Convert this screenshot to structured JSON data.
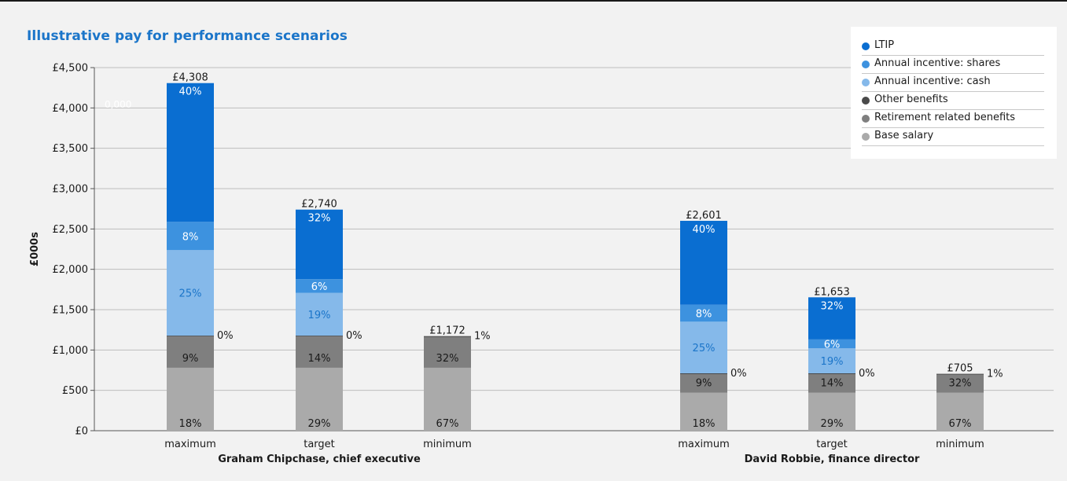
{
  "chart_data": {
    "type": "bar",
    "stacked": true,
    "title": "Illustrative pay for performance scenarios",
    "ylabel": "£000s",
    "ylim": [
      0,
      4500
    ],
    "yticks": [
      0,
      500,
      1000,
      1500,
      2000,
      2500,
      3000,
      3500,
      4000,
      4500
    ],
    "ytick_labels": [
      "£0",
      "£500",
      "£1,000",
      "£1,500",
      "£2,000",
      "£2,500",
      "£3,000",
      "£3,500",
      "£4,000",
      "£4,500"
    ],
    "grid": true,
    "legend_position": "top-right",
    "watermark_text": "0,000",
    "series": [
      {
        "name": "Base salary",
        "color": "#aaaaaa",
        "label_color": "#1a1a1a"
      },
      {
        "name": "Retirement related benefits",
        "color": "#7f7f7f",
        "label_color": "#1a1a1a"
      },
      {
        "name": "Other benefits",
        "color": "#4a4a4a",
        "label_color": "#1a1a1a"
      },
      {
        "name": "Annual incentive: cash",
        "color": "#85b9ea",
        "label_color": "#1b75c9"
      },
      {
        "name": "Annual incentive: shares",
        "color": "#3d92df",
        "label_color": "#ffffff"
      },
      {
        "name": "LTIP",
        "color": "#0a6ed1",
        "label_color": "#ffffff"
      }
    ],
    "legend_order": [
      "LTIP",
      "Annual incentive: shares",
      "Annual incentive: cash",
      "Other benefits",
      "Retirement related benefits",
      "Base salary"
    ],
    "groups": [
      {
        "name": "Graham Chipchase, chief executive",
        "bars": [
          {
            "category": "maximum",
            "total": 4308,
            "total_label": "£4,308",
            "values": [
              780,
              388,
              10,
              1060,
              350,
              1720
            ],
            "labels": [
              "18%",
              "9%",
              "0%",
              "25%",
              "8%",
              "40%"
            ]
          },
          {
            "category": "target",
            "total": 2740,
            "total_label": "£2,740",
            "values": [
              780,
              388,
              10,
              530,
              170,
              862
            ],
            "labels": [
              "29%",
              "14%",
              "0%",
              "19%",
              "6%",
              "32%"
            ]
          },
          {
            "category": "minimum",
            "total": 1172,
            "total_label": "£1,172",
            "values": [
              780,
              380,
              12,
              0,
              0,
              0
            ],
            "labels": [
              "67%",
              "32%",
              "1%",
              "",
              "",
              ""
            ]
          }
        ]
      },
      {
        "name": "David Robbie, finance director",
        "bars": [
          {
            "category": "maximum",
            "total": 2601,
            "total_label": "£2,601",
            "values": [
              470,
              233,
              8,
              640,
              210,
              1040
            ],
            "labels": [
              "18%",
              "9%",
              "0%",
              "25%",
              "8%",
              "40%"
            ]
          },
          {
            "category": "target",
            "total": 1653,
            "total_label": "£1,653",
            "values": [
              470,
              233,
              8,
              310,
              110,
              522
            ],
            "labels": [
              "29%",
              "14%",
              "0%",
              "19%",
              "6%",
              "32%"
            ]
          },
          {
            "category": "minimum",
            "total": 705,
            "total_label": "£705",
            "values": [
              470,
              226,
              9,
              0,
              0,
              0
            ],
            "labels": [
              "67%",
              "32%",
              "1%",
              "",
              "",
              ""
            ]
          }
        ]
      }
    ]
  }
}
